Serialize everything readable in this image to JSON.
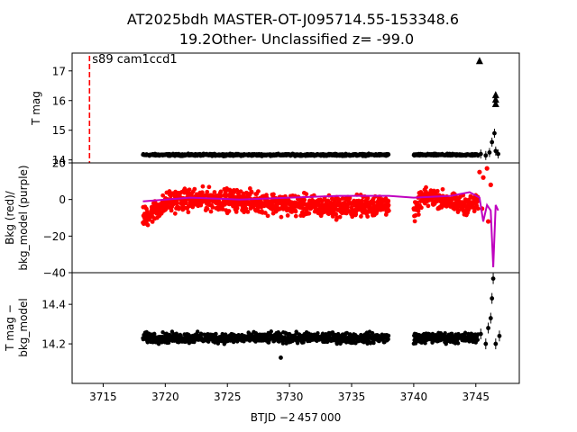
{
  "title_line1": "AT2025bdh  MASTER-OT-J095714.55-153348.6",
  "title_line2": "19.2Other- Unclassified z= -99.0",
  "xlabel": "BTJD −2 457 000",
  "marker_label": "s89 cam1ccd1",
  "colors": {
    "points": "#000000",
    "bkg": "#ff0000",
    "bkg_model": "#bf00bf",
    "marker_line": "#ff0000"
  },
  "chart_data": [
    {
      "type": "scatter",
      "panel": "lightcurve",
      "ylabel": "T mag",
      "yticks": [
        "14",
        "15",
        "16",
        "17"
      ],
      "ylim": [
        17.6,
        13.9
      ],
      "xlim": [
        3712.5,
        3748.5
      ],
      "inverted_y": true,
      "segments": [
        {
          "x": [
            3718.2,
            3738.0
          ],
          "y": 14.17
        },
        {
          "x": [
            3740.0,
            3745.2
          ],
          "y": 14.17
        }
      ],
      "late_points": [
        {
          "x": 3745.4,
          "y": 14.2
        },
        {
          "x": 3745.8,
          "y": 14.15
        },
        {
          "x": 3746.1,
          "y": 14.25
        },
        {
          "x": 3746.3,
          "y": 14.6
        },
        {
          "x": 3746.5,
          "y": 14.9
        },
        {
          "x": 3746.6,
          "y": 14.3
        },
        {
          "x": 3746.8,
          "y": 14.2
        }
      ],
      "upper_limits": [
        {
          "x": 3745.3,
          "y": 17.35
        },
        {
          "x": 3746.6,
          "y": 15.9
        },
        {
          "x": 3746.6,
          "y": 16.05
        },
        {
          "x": 3746.6,
          "y": 16.2
        }
      ],
      "marker_x": 3713.9
    },
    {
      "type": "scatter",
      "panel": "background",
      "ylabel": "Bkg (red)/\nbkg_model (purple)",
      "yticks": [
        "20",
        "0",
        "−20",
        "−40"
      ],
      "ylim": [
        -40,
        20
      ],
      "series": [
        {
          "name": "Bkg (red)",
          "segments": [
            {
              "x": [
                3718.2,
                3738.0
              ],
              "center": -2,
              "spread": 7
            },
            {
              "x": [
                3740.0,
                3745.2
              ],
              "center": -1,
              "spread": 6
            }
          ]
        },
        {
          "name": "bkg_model (purple)",
          "points": [
            [
              3718.2,
              -1
            ],
            [
              3722,
              1
            ],
            [
              3726,
              0
            ],
            [
              3730,
              1
            ],
            [
              3734,
              2
            ],
            [
              3738,
              2
            ],
            [
              3740,
              1
            ],
            [
              3743,
              2
            ],
            [
              3744.5,
              4
            ],
            [
              3745.3,
              1
            ],
            [
              3745.6,
              -12
            ],
            [
              3745.9,
              -3
            ],
            [
              3746.2,
              -6
            ],
            [
              3746.4,
              -37
            ],
            [
              3746.6,
              -3
            ],
            [
              3746.8,
              -6
            ]
          ]
        }
      ]
    },
    {
      "type": "scatter",
      "panel": "residual",
      "ylabel": "T mag −\nbkg_model",
      "yticks": [
        "14.2",
        "14.4"
      ],
      "ylim": [
        14.56,
        14.0
      ],
      "segments": [
        {
          "x": [
            3718.2,
            3738.0
          ],
          "y": 14.23
        },
        {
          "x": [
            3740.0,
            3745.2
          ],
          "y": 14.23
        }
      ],
      "late_points": [
        {
          "x": 3745.4,
          "y": 14.25
        },
        {
          "x": 3745.8,
          "y": 14.2
        },
        {
          "x": 3746.0,
          "y": 14.28
        },
        {
          "x": 3746.2,
          "y": 14.33
        },
        {
          "x": 3746.3,
          "y": 14.43
        },
        {
          "x": 3746.4,
          "y": 14.53
        },
        {
          "x": 3746.6,
          "y": 14.2
        },
        {
          "x": 3746.9,
          "y": 14.24
        }
      ]
    }
  ],
  "xticks": [
    "3715",
    "3720",
    "3725",
    "3730",
    "3735",
    "3740",
    "3745"
  ],
  "xtick_values": [
    3715,
    3720,
    3725,
    3730,
    3735,
    3740,
    3745
  ]
}
